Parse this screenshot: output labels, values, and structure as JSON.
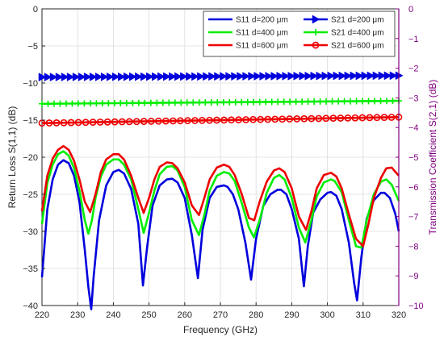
{
  "chart_data": {
    "type": "line",
    "xlabel": "Frequency (GHz)",
    "ylabel_left": "Return Loss S(1,1) (dB)",
    "ylabel_right": "Transmission Coefficient S(2,1) (dB)",
    "xlim": [
      220,
      320
    ],
    "ylim_left": [
      -40,
      0
    ],
    "ylim_right": [
      -10,
      0
    ],
    "x_ticks": [
      "220",
      "230",
      "240",
      "250",
      "260",
      "270",
      "280",
      "290",
      "300",
      "310",
      "320"
    ],
    "y_left_ticks": [
      "0",
      "−5",
      "−10",
      "−15",
      "−20",
      "−25",
      "−30",
      "−35",
      "−40"
    ],
    "y_right_ticks": [
      "0",
      "−1",
      "−2",
      "−3",
      "−4",
      "−5",
      "−6",
      "−7",
      "−8",
      "−9",
      "−10"
    ],
    "right_axis_color": "#800080",
    "grid": true,
    "legend_placement": "top-right",
    "series": [
      {
        "name": "S11 d=200 μm",
        "axis": "left",
        "color": "#0000dd",
        "marker": "none",
        "x": [
          220,
          221.5,
          223,
          224.5,
          226,
          227.5,
          229,
          230.5,
          232,
          233,
          233.8,
          234.5,
          236,
          238,
          240,
          241.5,
          243,
          245,
          247,
          248.3,
          249.5,
          251,
          253,
          255,
          256.5,
          258,
          260,
          262,
          263.7,
          265,
          267,
          269,
          271,
          272,
          273.5,
          275,
          277,
          278.6,
          280,
          282,
          284,
          286,
          287,
          288.5,
          290,
          292,
          293.4,
          294.5,
          296,
          298,
          300,
          301,
          302.5,
          304,
          306,
          307.5,
          308.3,
          309.5,
          311,
          313,
          315,
          316,
          317.5,
          319,
          320
        ],
        "y": [
          -36.2,
          -27,
          -23,
          -21,
          -20.4,
          -20.8,
          -22.5,
          -26,
          -32.5,
          -37.5,
          -40.5,
          -36,
          -28.5,
          -23.8,
          -22,
          -21.7,
          -22.2,
          -24.3,
          -29,
          -37.3,
          -32,
          -26.5,
          -23.8,
          -23,
          -22.9,
          -23.4,
          -25.5,
          -30.5,
          -36.3,
          -29.8,
          -25.5,
          -24,
          -23.8,
          -24,
          -25,
          -27,
          -31.5,
          -36.5,
          -31,
          -26.6,
          -25,
          -24.4,
          -24.4,
          -25,
          -27,
          -31,
          -37.4,
          -32,
          -27.5,
          -25.7,
          -24.8,
          -24.7,
          -25.2,
          -27,
          -31.5,
          -37,
          -39.3,
          -33.5,
          -28.3,
          -25.8,
          -24.8,
          -24.8,
          -25.5,
          -27.6,
          -30
        ]
      },
      {
        "name": "S21 d=200 μm",
        "axis": "right",
        "color": "#0000dd",
        "marker": "triangle",
        "x": [
          220,
          320
        ],
        "y": [
          -2.3,
          -2.25
        ],
        "marker_count": 64
      },
      {
        "name": "S11 d=400 μm",
        "axis": "left",
        "color": "#00ee00",
        "marker": "none",
        "x": [
          220,
          221.5,
          223,
          224.5,
          226,
          227.5,
          229,
          230.5,
          232,
          233,
          234,
          235,
          236.5,
          238,
          240,
          241.5,
          243,
          245,
          247,
          248.5,
          250,
          251.5,
          253,
          255,
          256.5,
          258,
          260,
          262,
          264,
          265.5,
          267,
          269,
          271,
          272.5,
          274,
          276,
          278,
          279.4,
          281,
          283,
          285,
          286.5,
          288,
          290,
          292,
          293.8,
          295.5,
          297,
          299,
          301,
          302,
          304,
          306,
          308,
          309.5,
          311,
          313,
          315,
          316.5,
          318,
          320
        ],
        "y": [
          -29,
          -23.5,
          -21,
          -19.6,
          -19.2,
          -19.8,
          -21.5,
          -24.5,
          -28.5,
          -30.3,
          -28.5,
          -25.5,
          -22.6,
          -21,
          -20.3,
          -20.3,
          -21,
          -23,
          -27,
          -30.2,
          -27.5,
          -24.5,
          -22.3,
          -21.3,
          -21.2,
          -21.8,
          -24,
          -28.5,
          -30.5,
          -27.8,
          -24.5,
          -22.5,
          -22,
          -22.2,
          -23.2,
          -26.2,
          -29.5,
          -30.8,
          -28.5,
          -24.8,
          -22.8,
          -22.4,
          -23,
          -25.5,
          -29.5,
          -31.5,
          -28.5,
          -25.3,
          -23.4,
          -23,
          -23.2,
          -24.7,
          -28.5,
          -32,
          -32.2,
          -28.5,
          -25,
          -23.3,
          -23,
          -23.7,
          -25.9
        ]
      },
      {
        "name": "S21 d=400 μm",
        "axis": "right",
        "color": "#00ee00",
        "marker": "plus",
        "x": [
          220,
          320
        ],
        "y": [
          -3.2,
          -3.1
        ],
        "marker_count": 60
      },
      {
        "name": "S11 d=600 μm",
        "axis": "left",
        "color": "#ee0000",
        "marker": "none",
        "x": [
          220,
          221.5,
          223,
          224.5,
          226,
          227.5,
          229,
          230.5,
          232,
          233.5,
          235,
          236.5,
          238,
          240,
          241.5,
          243,
          245,
          247,
          248.5,
          250,
          251.5,
          253,
          255,
          256.5,
          258,
          260,
          262,
          264,
          265.5,
          267,
          269,
          271,
          272.5,
          274,
          276,
          278,
          279.5,
          281,
          283,
          285,
          286.5,
          288,
          290,
          292,
          294,
          295.5,
          297,
          299,
          301,
          302.5,
          304,
          306,
          308,
          310,
          311.5,
          313,
          315,
          316.5,
          318,
          320
        ],
        "y": [
          -27.3,
          -22.5,
          -20.2,
          -19,
          -18.5,
          -19,
          -20.5,
          -23,
          -26,
          -27.4,
          -25,
          -22,
          -20.3,
          -19.6,
          -19.6,
          -20.3,
          -22.5,
          -25.5,
          -27.5,
          -25.5,
          -23,
          -21.3,
          -20.7,
          -20.8,
          -21.5,
          -23.4,
          -26.5,
          -27.8,
          -25.5,
          -23,
          -21.4,
          -21,
          -21.3,
          -22.4,
          -25,
          -28.2,
          -28.5,
          -26,
          -23.3,
          -21.8,
          -21.5,
          -22,
          -24.2,
          -28,
          -29.8,
          -27.3,
          -24.2,
          -22.4,
          -22.1,
          -22.6,
          -24.2,
          -27.7,
          -31,
          -32,
          -29,
          -25.5,
          -22.8,
          -21.5,
          -21.4,
          -22.5
        ]
      },
      {
        "name": "S21 d=600 μm",
        "axis": "right",
        "color": "#ee0000",
        "marker": "circle",
        "x": [
          220,
          320
        ],
        "y": [
          -3.85,
          -3.65
        ],
        "marker_count": 50
      }
    ]
  }
}
